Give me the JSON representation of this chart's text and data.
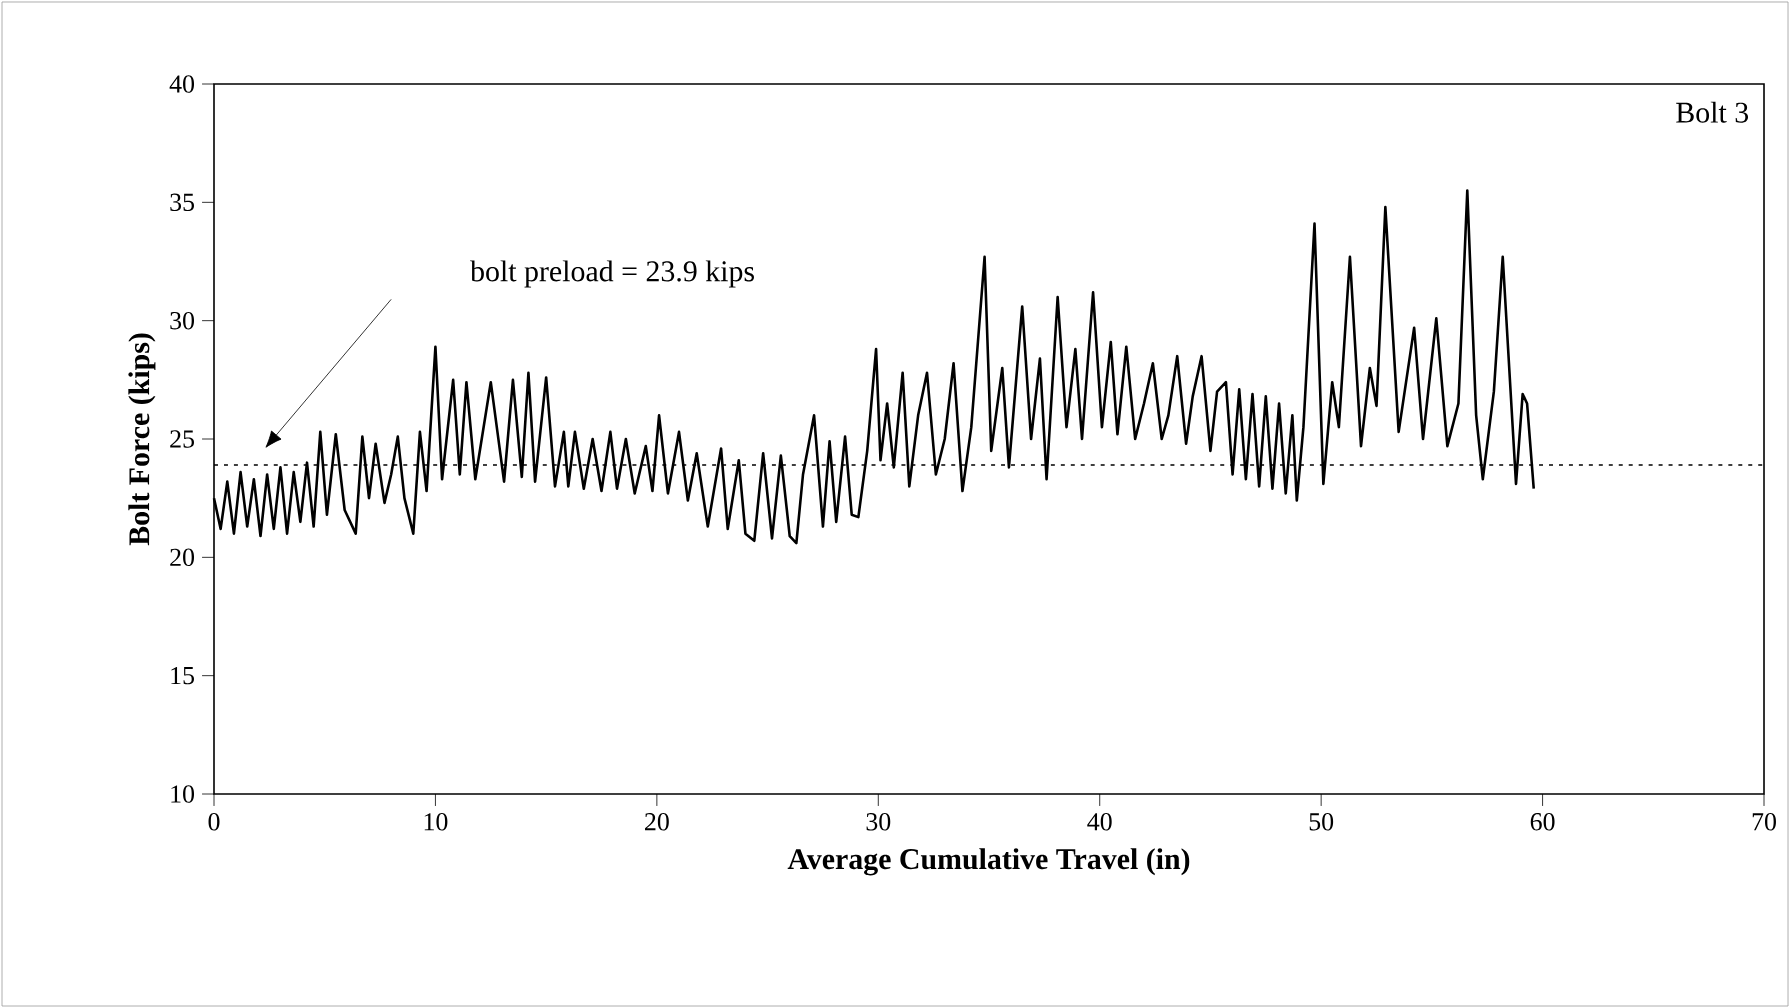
{
  "chart_data": {
    "type": "line",
    "xlabel": "Average Cumulative Travel (in)",
    "ylabel": "Bolt Force (kips)",
    "xlim": [
      0,
      70
    ],
    "ylim": [
      10,
      40
    ],
    "xticks": [
      0,
      10,
      20,
      30,
      40,
      50,
      60,
      70
    ],
    "yticks": [
      10,
      15,
      20,
      25,
      30,
      35,
      40
    ],
    "grid": false,
    "marker": "none",
    "line_style": "solid",
    "annotations": [
      "Bolt 3"
    ],
    "ref_lines": [
      {
        "axis": "y",
        "value": 23.9,
        "label": "bolt preload = 23.9 kips",
        "color": "#000000",
        "line_style": "dotted"
      }
    ],
    "series": [
      {
        "color": "#000000",
        "x": [
          0,
          0.3,
          0.6,
          0.9,
          1.2,
          1.5,
          1.8,
          2.1,
          2.4,
          2.7,
          3.0,
          3.3,
          3.6,
          3.9,
          4.2,
          4.5,
          4.8,
          5.1,
          5.5,
          5.9,
          6.4,
          6.7,
          7.0,
          7.3,
          7.7,
          8.0,
          8.3,
          8.6,
          9.0,
          9.3,
          9.6,
          10.0,
          10.3,
          10.8,
          11.1,
          11.4,
          11.8,
          12.5,
          13.1,
          13.5,
          13.9,
          14.2,
          14.5,
          15.0,
          15.4,
          15.8,
          16.0,
          16.3,
          16.7,
          17.1,
          17.5,
          17.9,
          18.2,
          18.6,
          19.0,
          19.5,
          19.8,
          20.1,
          20.5,
          21.0,
          21.4,
          21.8,
          22.3,
          22.9,
          23.2,
          23.7,
          24.0,
          24.4,
          24.8,
          25.2,
          25.6,
          26.0,
          26.3,
          26.6,
          27.1,
          27.5,
          27.8,
          28.1,
          28.5,
          28.8,
          29.1,
          29.5,
          29.9,
          30.1,
          30.4,
          30.7,
          31.1,
          31.4,
          31.8,
          32.2,
          32.6,
          33.0,
          33.4,
          33.8,
          34.2,
          34.8,
          35.1,
          35.6,
          35.9,
          36.5,
          36.9,
          37.3,
          37.6,
          38.1,
          38.5,
          38.9,
          39.2,
          39.7,
          40.1,
          40.5,
          40.8,
          41.2,
          41.6,
          42.0,
          42.4,
          42.8,
          43.1,
          43.5,
          43.9,
          44.2,
          44.6,
          45.0,
          45.3,
          45.7,
          46.0,
          46.3,
          46.6,
          46.9,
          47.2,
          47.5,
          47.8,
          48.1,
          48.4,
          48.7,
          48.9,
          49.2,
          49.7,
          50.1,
          50.5,
          50.8,
          51.3,
          51.8,
          52.2,
          52.5,
          52.9,
          53.5,
          54.2,
          54.6,
          55.2,
          55.7,
          56.2,
          56.6,
          57.0,
          57.3,
          57.8,
          58.2,
          58.8,
          59.1,
          59.3,
          59.6
        ],
        "values": [
          22.5,
          21.2,
          23.2,
          21.0,
          23.6,
          21.3,
          23.3,
          20.9,
          23.5,
          21.2,
          23.8,
          21.0,
          23.6,
          21.5,
          24.0,
          21.3,
          25.3,
          21.8,
          25.2,
          22.0,
          21.0,
          25.1,
          22.5,
          24.8,
          22.3,
          23.5,
          25.1,
          22.5,
          21.0,
          25.3,
          22.8,
          28.9,
          23.3,
          27.5,
          23.5,
          27.4,
          23.3,
          27.4,
          23.2,
          27.5,
          23.4,
          27.8,
          23.2,
          27.6,
          23.0,
          25.3,
          23.0,
          25.3,
          22.9,
          25.0,
          22.8,
          25.3,
          22.9,
          25.0,
          22.7,
          24.7,
          22.8,
          26.0,
          22.7,
          25.3,
          22.4,
          24.4,
          21.3,
          24.6,
          21.2,
          24.1,
          21.0,
          20.7,
          24.4,
          20.8,
          24.3,
          20.9,
          20.6,
          23.5,
          26.0,
          21.3,
          24.9,
          21.5,
          25.1,
          21.8,
          21.7,
          24.5,
          28.8,
          24.1,
          26.5,
          23.8,
          27.8,
          23.0,
          26.0,
          27.8,
          23.5,
          25.0,
          28.2,
          22.8,
          25.5,
          32.7,
          24.5,
          28.0,
          23.8,
          30.6,
          25.0,
          28.4,
          23.3,
          31.0,
          25.5,
          28.8,
          25.0,
          31.2,
          25.5,
          29.1,
          25.2,
          28.9,
          25.0,
          26.5,
          28.2,
          25.0,
          26.0,
          28.5,
          24.8,
          26.8,
          28.5,
          24.5,
          27.0,
          27.4,
          23.5,
          27.1,
          23.3,
          26.9,
          23.0,
          26.8,
          22.9,
          26.5,
          22.7,
          26.0,
          22.4,
          25.5,
          34.1,
          23.1,
          27.4,
          25.5,
          32.7,
          24.7,
          28.0,
          26.4,
          34.8,
          25.3,
          29.7,
          25.0,
          30.1,
          24.7,
          26.5,
          35.5,
          26.0,
          23.3,
          27.0,
          32.7,
          23.1,
          26.9,
          26.5,
          22.9
        ]
      }
    ]
  }
}
